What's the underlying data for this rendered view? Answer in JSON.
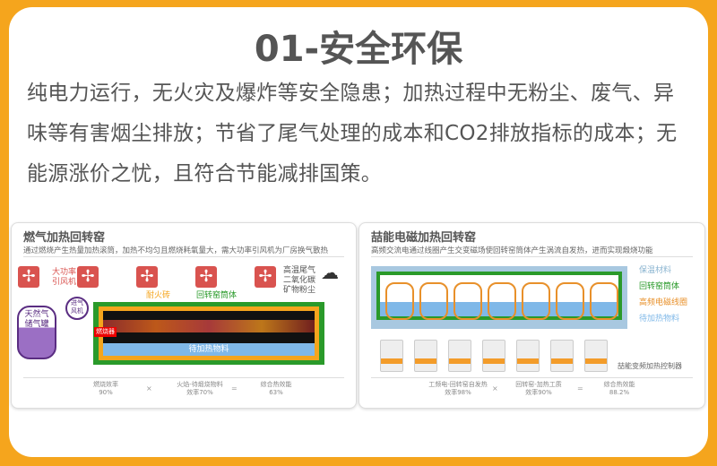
{
  "title": "01-安全环保",
  "paragraph": "纯电力运行，无火灾及爆炸等安全隐患；加热过程中无粉尘、废气、异味等有害烟尘排放；节省了尾气处理的成本和CO2排放指标的成本；无能源涨价之忧，且符合节能减排国策。",
  "colors": {
    "border": "#f5a51d",
    "green": "#2a9a2a",
    "orange": "#f5a51d",
    "blue": "#7fb8e8",
    "fan": "#d9534f",
    "purple": "#5a2d82"
  },
  "left": {
    "title": "燃气加热回转窑",
    "subtitle": "通过燃烧产生热量加热滚筒，加热不均匀且燃烧耗氧量大，需大功率引风机为厂房换气散热",
    "fan_label": "大功率\n引风机",
    "exhaust": "高温尾气\n二氧化碳\n矿物粉尘",
    "refractory": "耐火砖",
    "drum": "回转窑筒体",
    "tank": "天然气\n储气罐",
    "intake_fan": "进气\n风机",
    "burner": "燃烧器",
    "material": "待加热物料",
    "stats": [
      {
        "label": "燃烧效率",
        "value": "90%"
      },
      {
        "label": "火焰-待煅烧物料\n效率",
        "value": "70%"
      },
      {
        "label": "综合热效能",
        "value": "63%"
      }
    ],
    "ops": [
      "×",
      "="
    ]
  },
  "right": {
    "title": "喆能电磁加热回转窑",
    "subtitle": "高频交流电通过线圈产生交变磁场使回转窑筒体产生涡流自发热，进而实现煅烧功能",
    "legend": [
      "保温材料",
      "回转窑筒体",
      "高频电磁线圈",
      "待加热物料"
    ],
    "controller": "喆能变频加热控制器",
    "stats": [
      {
        "label": "工频电-回转窑自发热\n效率",
        "value": "98%"
      },
      {
        "label": "回转窑-加热工质\n效率",
        "value": "90%"
      },
      {
        "label": "综合热效能",
        "value": "88.2%"
      }
    ],
    "ops": [
      "×",
      "="
    ]
  }
}
